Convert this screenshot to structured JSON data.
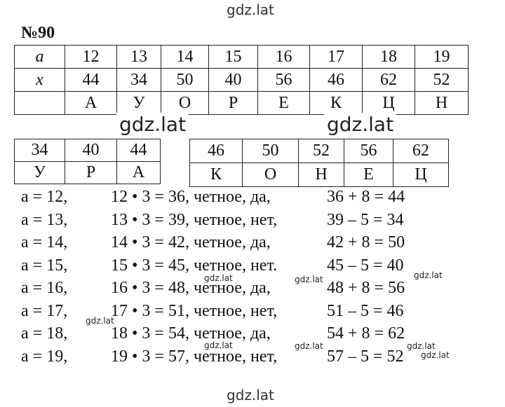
{
  "watermarks": [
    "gdz.lat",
    "gdz.lat",
    "gdz.lat",
    "gdz.lat",
    "gdz.lat",
    "gdz.lat",
    "gdz.lat",
    "gdz.lat",
    "gdz.lat",
    "gdz.lat",
    "gdz.lat",
    "gdz.lat"
  ],
  "title": "№90",
  "table1": {
    "rows": [
      {
        "label": "a",
        "cells": [
          "12",
          "13",
          "14",
          "15",
          "16",
          "17",
          "18",
          "19"
        ]
      },
      {
        "label": "x",
        "cells": [
          "44",
          "34",
          "50",
          "40",
          "56",
          "46",
          "62",
          "52"
        ]
      },
      {
        "cells": [
          "А",
          "У",
          "О",
          "Р",
          "Е",
          "К",
          "Ц",
          "Н"
        ]
      }
    ]
  },
  "table2": {
    "rows": [
      [
        "34",
        "40",
        "44"
      ],
      [
        "У",
        "Р",
        "А"
      ]
    ]
  },
  "table3": {
    "rows": [
      [
        "46",
        "50",
        "52",
        "56",
        "62"
      ],
      [
        "К",
        "О",
        "Н",
        "Е",
        "Ц"
      ]
    ]
  },
  "lines": [
    [
      "a = 12,",
      "12 • 3 = 36, четное, да,",
      "36 + 8 = 44"
    ],
    [
      "a = 13,",
      "13 • 3 = 39, четное, нет,",
      "39 – 5 = 34"
    ],
    [
      "a = 14,",
      "14 • 3 = 42, четное, да,",
      "42 + 8 = 50"
    ],
    [
      "a = 15,",
      "15 • 3 = 45, четное, нет.",
      "45 – 5 = 40"
    ],
    [
      "a = 16,",
      "16 • 3 = 48, четное, да,",
      "48 + 8 = 56"
    ],
    [
      "a = 17,",
      "17 • 3 = 51, четное, нет,",
      "51 – 5 = 46"
    ],
    [
      "a = 18,",
      "18 • 3 = 54, четное, да,",
      "54 + 8 = 62"
    ],
    [
      "a = 19,",
      "19 • 3 = 57, четное, нет,",
      "57 – 5 = 52"
    ]
  ]
}
